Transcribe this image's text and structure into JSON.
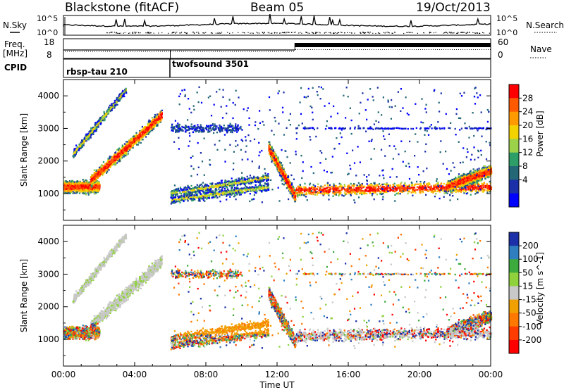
{
  "header": {
    "title": "Blackstone (fitACF)",
    "beam": "Beam 05",
    "date": "19/Oct/2013"
  },
  "noise_panel": {
    "left_label": "N.Sky",
    "right_label": "N.Search",
    "left_ticks": [
      "10^5",
      "10^0"
    ],
    "right_ticks": [
      "10^5",
      "10^0"
    ]
  },
  "freq_panel": {
    "left_label_line1": "Freq.",
    "left_label_line2": "[MHz]",
    "left_ticks": [
      "18",
      "8"
    ],
    "right_label": "Nave",
    "right_ticks": [
      "60",
      "0"
    ]
  },
  "cpid_panel": {
    "label": "CPID",
    "programs": [
      {
        "name": "rbsp-tau 210",
        "start": "00:00"
      },
      {
        "name": "twofsound 3501",
        "start": "06:00"
      }
    ]
  },
  "chart_data": [
    {
      "type": "heatmap",
      "name": "power",
      "ylabel": "Slant Range [km]",
      "x_range": [
        "00:00",
        "24:00"
      ],
      "ylim": [
        180,
        4500
      ],
      "y_ticks": [
        1000,
        2000,
        3000,
        4000
      ],
      "colorbar": {
        "label": "Power [dB]",
        "tick_labels": [
          "28",
          "24",
          "20",
          "16",
          "12",
          "8",
          "4"
        ],
        "colors": [
          "#ff0000",
          "#ff5a00",
          "#ff9a00",
          "#f2d200",
          "#9bd24a",
          "#2e9e68",
          "#246878",
          "#1a2fa8",
          "#0000ff"
        ]
      },
      "echo_bands": [
        {
          "start_hr": 0.0,
          "end_hr": 2.0,
          "range_start_km": 1200,
          "range_end_km": 1200,
          "intensity": "high"
        },
        {
          "start_hr": 1.5,
          "end_hr": 5.5,
          "range_start_km": 1400,
          "range_end_km": 3400,
          "intensity": "high"
        },
        {
          "start_hr": 0.5,
          "end_hr": 3.5,
          "range_start_km": 2200,
          "range_end_km": 4200,
          "intensity": "mid"
        },
        {
          "start_hr": 6.0,
          "end_hr": 11.5,
          "range_start_km": 1000,
          "range_end_km": 1500,
          "intensity": "mid"
        },
        {
          "start_hr": 6.0,
          "end_hr": 11.5,
          "range_start_km": 800,
          "range_end_km": 1200,
          "intensity": "mid"
        },
        {
          "start_hr": 6.0,
          "end_hr": 10.0,
          "range_start_km": 3000,
          "range_end_km": 3000,
          "intensity": "low"
        },
        {
          "start_hr": 11.5,
          "end_hr": 13.0,
          "range_start_km": 2400,
          "range_end_km": 900,
          "intensity": "high"
        },
        {
          "start_hr": 13.0,
          "end_hr": 24.0,
          "range_start_km": 1100,
          "range_end_km": 1200,
          "intensity": "high"
        },
        {
          "start_hr": 21.5,
          "end_hr": 24.0,
          "range_start_km": 1200,
          "range_end_km": 1700,
          "intensity": "high"
        }
      ]
    },
    {
      "type": "heatmap",
      "name": "velocity",
      "ylabel": "Slant Range [km]",
      "xlabel": "Time UT",
      "x_range": [
        "00:00",
        "24:00"
      ],
      "x_ticks": [
        "00:00",
        "04:00",
        "08:00",
        "12:00",
        "16:00",
        "20:00",
        "00:00"
      ],
      "ylim": [
        180,
        4500
      ],
      "y_ticks": [
        1000,
        2000,
        3000,
        4000
      ],
      "colorbar": {
        "label": "Velocity [m s^-1]",
        "tick_labels": [
          "200",
          "100",
          "50",
          "15",
          "-15",
          "-50",
          "-100",
          "-200"
        ],
        "colors": [
          "#1a2fa8",
          "#2e7ec0",
          "#3caa3c",
          "#8fd23c",
          "#c8c8c8",
          "#f0a000",
          "#ff7800",
          "#ff3c00",
          "#ff0000"
        ]
      }
    }
  ]
}
